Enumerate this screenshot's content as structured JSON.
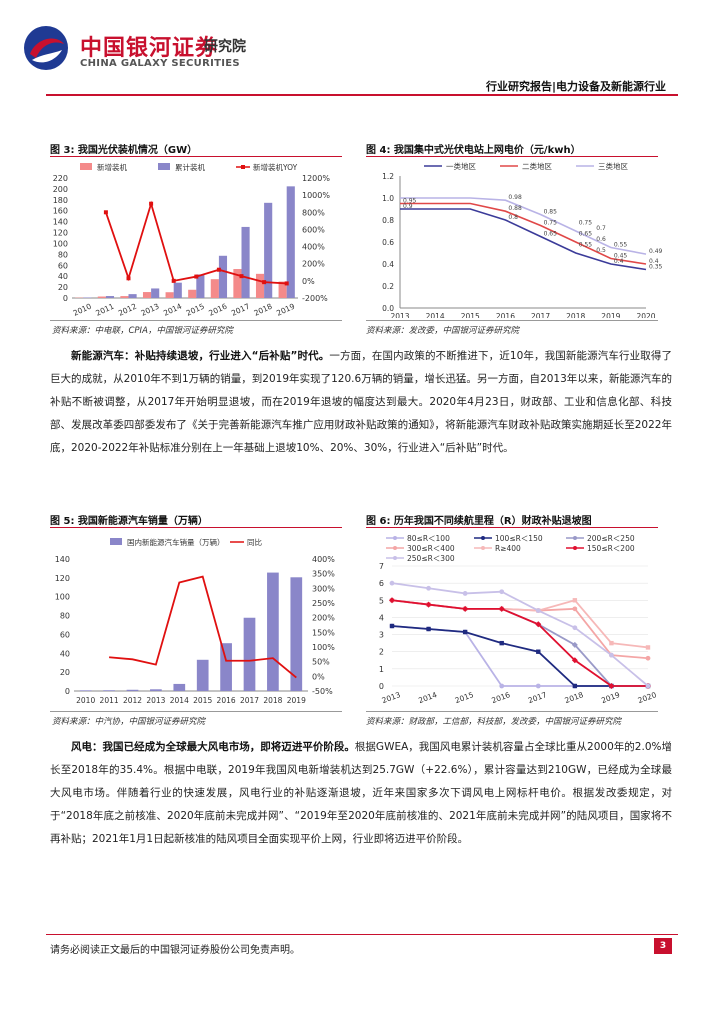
{
  "header": {
    "brand_cn": "中国银河证券",
    "brand_sub": "研究院",
    "brand_en": "CHINA GALAXY SECURITIES",
    "report_type": "行业研究报告|电力设备及新能源行业",
    "colors": {
      "brand_red": "#c8102e",
      "brand_blue": "#1f3a93"
    }
  },
  "fig3": {
    "title": "图 3: 我国光伏装机情况（GW）",
    "source": "资料来源：中电联，CPIA，中国银河证券研究院",
    "chart_data": {
      "type": "bar",
      "categories": [
        "2010",
        "2011",
        "2012",
        "2013",
        "2014",
        "2015",
        "2016",
        "2017",
        "2018",
        "2019"
      ],
      "series": [
        {
          "name": "新增装机",
          "type": "bar",
          "color": "#f48a8a",
          "values": [
            0.6,
            2.7,
            3.5,
            10.9,
            10.6,
            15.1,
            34.5,
            53.1,
            44.3,
            30.1
          ]
        },
        {
          "name": "累计装机",
          "type": "bar",
          "color": "#8a86c9",
          "values": [
            0.9,
            3.6,
            7.1,
            17.5,
            28.1,
            43.2,
            77.4,
            130.3,
            174.5,
            204.7
          ]
        },
        {
          "name": "新增装机YOY",
          "type": "line",
          "axis": "right",
          "color": "#e01010",
          "values": [
            null,
            800,
            30,
            900,
            0,
            50,
            130,
            55,
            -15,
            -30
          ]
        }
      ],
      "yleft_ticks": [
        "0",
        "20",
        "40",
        "60",
        "80",
        "100",
        "120",
        "140",
        "160",
        "180",
        "200",
        "220"
      ],
      "yright_ticks": [
        "-200%",
        "0%",
        "200%",
        "400%",
        "600%",
        "800%",
        "1000%",
        "1200%"
      ],
      "ylim": [
        0,
        220
      ],
      "y2lim": [
        -200,
        1200
      ]
    }
  },
  "fig4": {
    "title": "图 4: 我国集中式光伏电站上网电价（元/kwh）",
    "chart_data": {
      "type": "line",
      "x": [
        "2013",
        "2014",
        "2015",
        "2016",
        "2017",
        "2018",
        "2019",
        "2020"
      ],
      "yticks": [
        "0.0",
        "0.2",
        "0.4",
        "0.6",
        "0.8",
        "1.0",
        "1.2"
      ],
      "ylim": [
        0,
        1.2
      ],
      "series": [
        {
          "name": "一类地区",
          "color": "#3b3b99",
          "values": [
            0.9,
            0.9,
            0.9,
            0.8,
            0.65,
            0.5,
            0.4,
            0.35
          ]
        },
        {
          "name": "二类地区",
          "color": "#e04848",
          "values": [
            0.95,
            0.95,
            0.95,
            0.88,
            0.75,
            0.6,
            0.45,
            0.4
          ]
        },
        {
          "name": "三类地区",
          "color": "#b9b3e6",
          "values": [
            1.0,
            1.0,
            1.0,
            0.98,
            0.85,
            0.7,
            0.55,
            0.49
          ]
        }
      ],
      "data_labels": [
        {
          "x": "2013",
          "y": 0.95,
          "text": "0.95"
        },
        {
          "x": "2013",
          "y": 0.9,
          "text": "0.9"
        },
        {
          "x": "2016",
          "y": 0.98,
          "text": "0.98"
        },
        {
          "x": "2016",
          "y": 0.88,
          "text": "0.88"
        },
        {
          "x": "2016",
          "y": 0.8,
          "text": "0.8"
        },
        {
          "x": "2017",
          "y": 0.85,
          "text": "0.85"
        },
        {
          "x": "2017",
          "y": 0.75,
          "text": "0.75"
        },
        {
          "x": "2017",
          "y": 0.65,
          "text": "0.65"
        },
        {
          "x": "2018",
          "y": 0.75,
          "text": "0.75"
        },
        {
          "x": "2018",
          "y": 0.65,
          "text": "0.65"
        },
        {
          "x": "2018",
          "y": 0.55,
          "text": "0.55"
        },
        {
          "x": "2018.5",
          "y": 0.7,
          "text": "0.7"
        },
        {
          "x": "2018.5",
          "y": 0.6,
          "text": "0.6"
        },
        {
          "x": "2018.5",
          "y": 0.5,
          "text": "0.5"
        },
        {
          "x": "2019",
          "y": 0.55,
          "text": "0.55"
        },
        {
          "x": "2019",
          "y": 0.45,
          "text": "0.45"
        },
        {
          "x": "2019",
          "y": 0.4,
          "text": "0.4"
        },
        {
          "x": "2020",
          "y": 0.49,
          "text": "0.49"
        },
        {
          "x": "2020",
          "y": 0.4,
          "text": "0.4"
        },
        {
          "x": "2020",
          "y": 0.35,
          "text": "0.35"
        }
      ]
    },
    "source": "资料来源：发改委，中国银河证券研究院"
  },
  "para1": {
    "lead": "新能源汽车：补贴持续退坡，行业进入“后补贴”时代。",
    "body": "一方面，在国内政策的不断推进下，近10年，我国新能源汽车行业取得了巨大的成就，从2010年不到1万辆的销量，到2019年实现了120.6万辆的销量，增长迅猛。另一方面，自2013年以来，新能源汽车的补贴不断被调整，从2017年开始明显退坡，而在2019年退坡的幅度达到最大。2020年4月23日，财政部、工业和信息化部、科技部、发展改革委四部委发布了《关于完善新能源汽车推广应用财政补贴政策的通知》，将新能源汽车财政补贴政策实施期延长至2022年底，2020-2022年补贴标准分别在上一年基础上退坡10%、20%、30%，行业进入“后补贴”时代。"
  },
  "fig5": {
    "title": "图 5: 我国新能源汽车销量（万辆）",
    "source": "资料来源：中汽协，中国银河证券研究院",
    "chart_data": {
      "type": "bar",
      "categories": [
        "2010",
        "2011",
        "2012",
        "2013",
        "2014",
        "2015",
        "2016",
        "2017",
        "2018",
        "2019"
      ],
      "series": [
        {
          "name": "国内新能源汽车销量（万辆）",
          "type": "bar",
          "color": "#8a86c9",
          "values": [
            0.7,
            0.8,
            1.3,
            1.8,
            7.5,
            33.1,
            50.7,
            77.7,
            125.6,
            120.6
          ]
        },
        {
          "name": "同比",
          "type": "line",
          "axis": "right",
          "color": "#e01010",
          "values": [
            null,
            65,
            58,
            40,
            320,
            340,
            53,
            53,
            62,
            -4
          ]
        }
      ],
      "yleft_ticks": [
        "0",
        "20",
        "40",
        "60",
        "80",
        "100",
        "120",
        "140"
      ],
      "yright_ticks": [
        "-50%",
        "0%",
        "50%",
        "100%",
        "150%",
        "200%",
        "250%",
        "300%",
        "350%",
        "400%"
      ],
      "ylim": [
        0,
        140
      ],
      "y2lim": [
        -50,
        400
      ]
    }
  },
  "fig6": {
    "title": "图 6: 历年我国不同续航里程（R）财政补贴退坡图",
    "source": "资料来源：财政部，工信部，科技部，发改委，中国银河证券研究院",
    "chart_data": {
      "type": "line",
      "x": [
        "2013",
        "2014",
        "2015",
        "2016",
        "2017",
        "2018",
        "2019",
        "2020"
      ],
      "yticks": [
        "0",
        "1",
        "2",
        "3",
        "4",
        "5",
        "6",
        "7"
      ],
      "ylim": [
        0,
        7
      ],
      "series": [
        {
          "name": "80≤R＜100",
          "color": "#b9b3e6",
          "values": [
            3.5,
            3.325,
            3.15,
            0,
            0,
            0,
            0,
            0
          ]
        },
        {
          "name": "100≤R＜150",
          "color": "#1f2a80",
          "values": [
            3.5,
            3.325,
            3.15,
            2.5,
            2.0,
            0,
            0,
            0
          ]
        },
        {
          "name": "200≤R＜250",
          "color": "#9a9ac8",
          "values": [
            5.0,
            4.75,
            4.5,
            4.5,
            3.6,
            2.4,
            0,
            0
          ]
        },
        {
          "name": "300≤R＜400",
          "color": "#f4a6a6",
          "values": [
            5.0,
            4.75,
            4.5,
            4.5,
            4.4,
            4.5,
            1.8,
            1.62
          ]
        },
        {
          "name": "R≥400",
          "color": "#f6b8b8",
          "values": [
            5.0,
            4.75,
            4.5,
            4.5,
            4.4,
            5.0,
            2.5,
            2.25
          ]
        },
        {
          "name": "150≤R＜200",
          "color": "#e01030",
          "values": [
            5.0,
            4.75,
            4.5,
            4.5,
            3.6,
            1.5,
            0,
            0
          ]
        },
        {
          "name": "250≤R＜300",
          "color": "#c8c0e8",
          "values": [
            6.0,
            5.7,
            5.4,
            5.5,
            4.4,
            3.4,
            1.8,
            0
          ]
        }
      ]
    }
  },
  "para2": {
    "lead": "风电：我国已经成为全球最大风电市场，即将迈进平价阶段。",
    "body": "根据GWEA，我国风电累计装机容量占全球比重从2000年的2.0%增长至2018年的35.4%。根据中电联，2019年我国风电新增装机达到25.7GW（+22.6%），累计容量达到210GW，已经成为全球最大风电市场。伴随着行业的快速发展，风电行业的补贴逐渐退坡，近年来国家多次下调风电上网标杆电价。根据发改委规定，对于“2018年底之前核准、2020年底前未完成并网”、“2019年至2020年底前核准的、2021年底前未完成并网”的陆风项目，国家将不再补贴；2021年1月1日起新核准的陆风项目全面实现平价上网，行业即将迈进平价阶段。"
  },
  "footer": {
    "disclaimer": "请务必阅读正文最后的中国银河证券股份公司免责声明。",
    "page_number": "3"
  }
}
